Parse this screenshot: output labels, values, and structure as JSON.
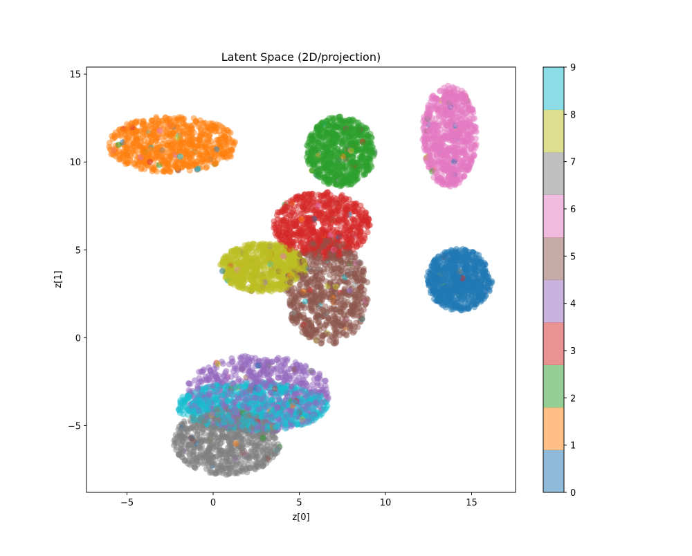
{
  "chart_data": {
    "type": "scatter",
    "title": "Latent Space (2D/projection)",
    "xlabel": "z[0]",
    "ylabel": "z[1]",
    "xlim": [
      -7.35,
      17.55
    ],
    "ylim": [
      -8.8,
      15.4
    ],
    "xticks": [
      -5,
      0,
      5,
      10,
      15
    ],
    "yticks": [
      -5,
      0,
      5,
      10,
      15
    ],
    "xtick_labels": [
      "−5",
      "0",
      "5",
      "10",
      "15"
    ],
    "ytick_labels": [
      "−5",
      "0",
      "5",
      "10",
      "15"
    ],
    "grid": false,
    "marker_alpha": 0.5,
    "colormap": "tab10",
    "colorbar": {
      "ticks": [
        0,
        1,
        2,
        3,
        4,
        5,
        6,
        7,
        8,
        9
      ],
      "tick_labels": [
        "0",
        "1",
        "2",
        "3",
        "4",
        "5",
        "6",
        "7",
        "8",
        "9"
      ],
      "range": [
        0,
        9
      ]
    },
    "clusters": [
      {
        "label": 0,
        "color": "#1f77b4",
        "center": [
          14.3,
          3.3
        ],
        "spread": [
          1.9,
          1.75
        ]
      },
      {
        "label": 1,
        "color": "#ff7f0e",
        "center": [
          -2.4,
          11.0
        ],
        "spread": [
          3.8,
          1.6
        ]
      },
      {
        "label": 2,
        "color": "#2ca02c",
        "center": [
          7.4,
          10.6
        ],
        "spread": [
          2.0,
          2.0
        ]
      },
      {
        "label": 3,
        "color": "#d62728",
        "center": [
          6.3,
          6.4
        ],
        "spread": [
          2.8,
          1.9
        ]
      },
      {
        "label": 4,
        "color": "#9467bd",
        "center": [
          2.6,
          -3.2
        ],
        "spread": [
          4.2,
          2.2
        ]
      },
      {
        "label": 5,
        "color": "#8c564b",
        "center": [
          6.6,
          2.6
        ],
        "spread": [
          2.4,
          3.0
        ]
      },
      {
        "label": 6,
        "color": "#e377c2",
        "center": [
          13.7,
          11.5
        ],
        "spread": [
          1.6,
          2.9
        ]
      },
      {
        "label": 7,
        "color": "#7f7f7f",
        "center": [
          0.8,
          -5.9
        ],
        "spread": [
          3.1,
          1.9
        ]
      },
      {
        "label": 8,
        "color": "#bcbd22",
        "center": [
          2.9,
          4.0
        ],
        "spread": [
          2.5,
          1.4
        ]
      },
      {
        "label": 9,
        "color": "#17becf",
        "center": [
          2.3,
          -3.9
        ],
        "spread": [
          4.4,
          1.4
        ]
      }
    ]
  }
}
